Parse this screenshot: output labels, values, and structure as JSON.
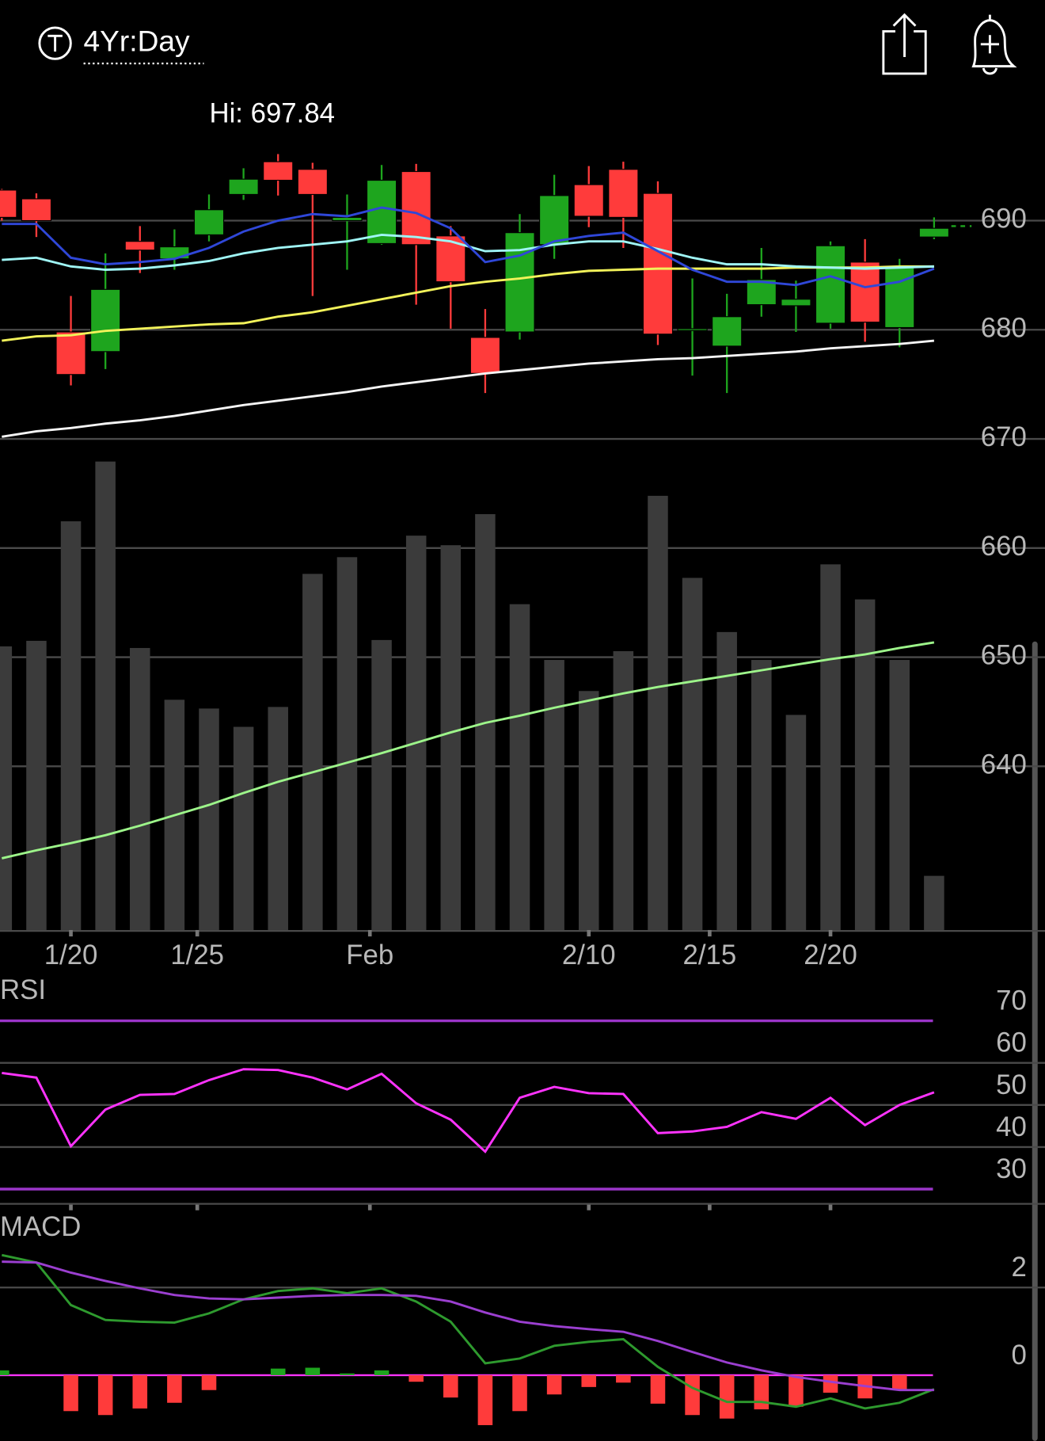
{
  "header": {
    "range": "4Yr:Day",
    "hi": "Hi: 697.84"
  },
  "chart_data": [
    {
      "type": "candlestick",
      "up_color": "#1ea51e",
      "down_color": "#ff3b3b",
      "grid_color": "#4a4a4a",
      "ylim": [
        625,
        698
      ],
      "yticks": [
        640,
        650,
        660,
        670,
        680,
        690
      ],
      "xticks": [
        {
          "value": 2,
          "label": "1/20"
        },
        {
          "value": 5.66,
          "label": "1/25"
        },
        {
          "value": 10.66,
          "label": "Feb"
        },
        {
          "value": 17,
          "label": "2/10"
        },
        {
          "value": 20.5,
          "label": "2/15"
        },
        {
          "value": 24,
          "label": "2/20"
        }
      ],
      "open": [
        692.8,
        692.0,
        679.8,
        678.0,
        688.1,
        686.5,
        688.7,
        692.4,
        695.4,
        694.7,
        690.0,
        687.9,
        694.5,
        688.6,
        679.3,
        679.8,
        687.8,
        693.3,
        694.7,
        692.5,
        680.0,
        678.5,
        682.3,
        682.2,
        680.6,
        686.2,
        680.2,
        688.5
      ],
      "high": [
        692.9,
        692.5,
        683.1,
        687.0,
        689.5,
        689.2,
        692.4,
        694.8,
        696.1,
        695.3,
        692.4,
        695.1,
        695.2,
        689.5,
        681.9,
        690.6,
        694.2,
        695.0,
        695.4,
        693.6,
        684.7,
        683.3,
        687.5,
        684.5,
        688.1,
        688.3,
        686.5,
        690.3
      ],
      "low": [
        690.0,
        688.5,
        674.9,
        676.4,
        685.2,
        685.5,
        688.1,
        691.9,
        692.3,
        683.1,
        685.5,
        687.8,
        682.3,
        680.1,
        674.2,
        679.1,
        686.5,
        689.4,
        687.5,
        678.6,
        675.8,
        674.2,
        681.2,
        679.8,
        680.1,
        678.9,
        678.4,
        688.3
      ],
      "close": [
        690.3,
        690.0,
        675.9,
        683.7,
        687.3,
        687.6,
        691.0,
        693.8,
        693.7,
        692.4,
        690.3,
        693.7,
        687.8,
        684.4,
        676.0,
        688.9,
        692.3,
        690.4,
        690.3,
        679.6,
        680.1,
        681.2,
        684.6,
        682.8,
        687.7,
        680.7,
        685.7,
        689.3
      ],
      "series": [
        {
          "color": "#f5f5f5",
          "values": [
            670.2,
            670.7,
            671.0,
            671.4,
            671.7,
            672.1,
            672.6,
            673.1,
            673.5,
            673.9,
            674.3,
            674.8,
            675.2,
            675.6,
            676.0,
            676.3,
            676.6,
            676.9,
            677.1,
            677.3,
            677.4,
            677.6,
            677.8,
            678.0,
            678.3,
            678.5,
            678.7,
            679.0
          ]
        },
        {
          "color": "#f2f25a",
          "values": [
            679.0,
            679.4,
            679.5,
            679.9,
            680.1,
            680.3,
            680.5,
            680.6,
            681.2,
            681.6,
            682.2,
            682.8,
            683.4,
            684.0,
            684.4,
            684.7,
            685.1,
            685.4,
            685.5,
            685.6,
            685.6,
            685.6,
            685.6,
            685.7,
            685.7,
            685.7,
            685.8,
            685.8
          ]
        },
        {
          "color": "#9ff5f5",
          "values": [
            686.4,
            686.6,
            685.8,
            685.5,
            685.6,
            685.9,
            686.3,
            687.0,
            687.5,
            687.8,
            688.1,
            688.7,
            688.5,
            688.1,
            687.2,
            687.3,
            687.8,
            688.1,
            688.1,
            687.4,
            686.6,
            686.0,
            686.0,
            685.8,
            685.7,
            685.6,
            685.7,
            685.8
          ]
        },
        {
          "color": "#2f47d8",
          "values": [
            689.7,
            689.7,
            686.6,
            686.0,
            686.2,
            686.5,
            687.5,
            689.0,
            690.0,
            690.6,
            690.4,
            691.2,
            690.7,
            689.3,
            686.2,
            686.8,
            688.1,
            688.6,
            688.9,
            687.2,
            685.5,
            684.4,
            684.4,
            684.1,
            684.9,
            683.9,
            684.4,
            685.6
          ]
        }
      ],
      "volume": {
        "color": "#3b3b3b",
        "y2lim": [
          0,
          100
        ],
        "values": [
          35.6,
          36.3,
          51.3,
          58.8,
          35.4,
          28.9,
          27.8,
          25.5,
          28.0,
          44.7,
          46.8,
          36.4,
          49.5,
          48.3,
          52.2,
          40.9,
          33.9,
          30.0,
          35.0,
          54.5,
          44.2,
          37.4,
          33.9,
          27.0,
          45.9,
          41.5,
          33.9,
          6.8
        ],
        "ma_color": "#9df58a",
        "ma": [
          9.0,
          10.0,
          10.9,
          11.9,
          13.1,
          14.4,
          15.7,
          17.2,
          18.6,
          19.8,
          21.0,
          22.2,
          23.5,
          24.8,
          26.0,
          26.9,
          27.9,
          28.8,
          29.7,
          30.5,
          31.2,
          31.9,
          32.6,
          33.3,
          34.0,
          34.6,
          35.4,
          36.1
        ]
      }
    },
    {
      "type": "line",
      "title": "RSI",
      "color": "#ff33ff",
      "grid_color": "#4a4a4a",
      "limit_color": "#9a35c8",
      "ylim": [
        26.5,
        80
      ],
      "yticks": [
        30,
        40,
        50,
        60,
        70
      ],
      "values": [
        57.6,
        56.5,
        40.2,
        48.9,
        52.4,
        52.6,
        55.9,
        58.5,
        58.3,
        56.5,
        53.7,
        57.4,
        50.4,
        46.5,
        38.9,
        51.7,
        54.3,
        52.8,
        52.6,
        43.3,
        43.7,
        44.8,
        48.3,
        46.7,
        51.7,
        45.2,
        50.0,
        53.0
      ]
    },
    {
      "type": "macd",
      "title": "MACD",
      "grid_color": "#4a4a4a",
      "zero_color": "#ff33ff",
      "ylim": [
        -1.5,
        3.7
      ],
      "yticks": [
        0,
        2
      ],
      "macd_color": "#2e9a2e",
      "signal_color": "#9b3fd0",
      "up_color": "#1ea51e",
      "down_color": "#ff3b3b",
      "macd": [
        2.74,
        2.57,
        1.6,
        1.26,
        1.22,
        1.2,
        1.41,
        1.73,
        1.92,
        1.98,
        1.87,
        1.98,
        1.68,
        1.22,
        0.27,
        0.38,
        0.67,
        0.76,
        0.82,
        0.19,
        -0.29,
        -0.61,
        -0.61,
        -0.72,
        -0.53,
        -0.76,
        -0.63,
        -0.32
      ],
      "signal": [
        2.59,
        2.57,
        2.34,
        2.15,
        1.98,
        1.83,
        1.75,
        1.73,
        1.77,
        1.81,
        1.83,
        1.83,
        1.81,
        1.68,
        1.43,
        1.22,
        1.12,
        1.05,
        0.99,
        0.78,
        0.53,
        0.29,
        0.11,
        -0.04,
        -0.15,
        -0.25,
        -0.34,
        -0.34
      ],
      "histogram": [
        0.11,
        0,
        -0.82,
        -0.91,
        -0.76,
        -0.63,
        -0.34,
        0,
        0.15,
        0.17,
        0.04,
        0.11,
        -0.15,
        -0.51,
        -1.14,
        -0.82,
        -0.44,
        -0.27,
        -0.17,
        -0.65,
        -0.91,
        -0.99,
        -0.78,
        -0.72,
        -0.4,
        -0.53,
        -0.32,
        0
      ]
    }
  ]
}
